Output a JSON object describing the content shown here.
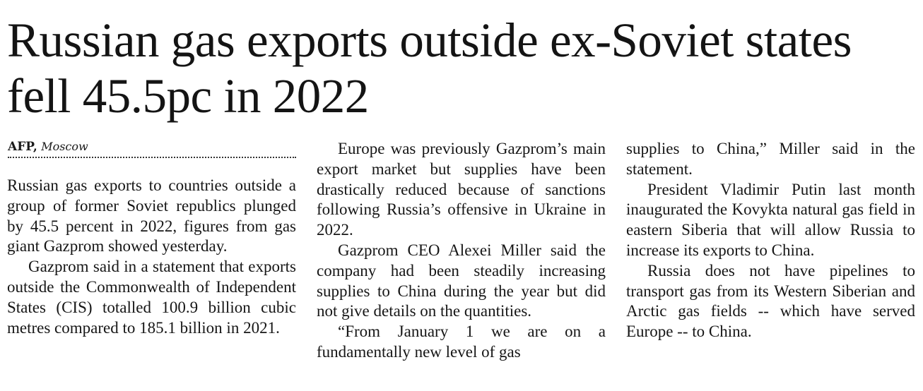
{
  "article": {
    "headline": "Russian gas exports outside ex-Soviet states fell 45.5pc in 2022",
    "byline": {
      "agency": "AFP,",
      "dateline": "Moscow"
    },
    "paragraphs": [
      "Russian gas exports to countries outside a group of former Soviet republics plunged by 45.5 percent in 2022, figures from gas giant Gazprom showed yesterday.",
      "Gazprom said in a statement that exports outside the Commonwealth of Independent States (CIS) totalled 100.9 billion cubic metres compared to 185.1 billion in 2021.",
      "Europe was previously Gazprom’s main export market but supplies have been drastically reduced because of sanctions following Russia’s offensive in Ukraine in 2022.",
      "Gazprom CEO Alexei Miller said the company had been steadily increasing supplies to China during the year but did not give details on the quantities.",
      "“From January 1 we are on a fundamentally new level of gas",
      "supplies to China,” Miller said in the statement.",
      "President Vladimir Putin last month inaugurated the Kovykta natural gas field in eastern Siberia that will allow Russia to increase its exports to China.",
      "Russia does not have pipelines to transport gas from its Western Siberian and Arctic gas fields -- which have served Europe -- to China."
    ]
  }
}
